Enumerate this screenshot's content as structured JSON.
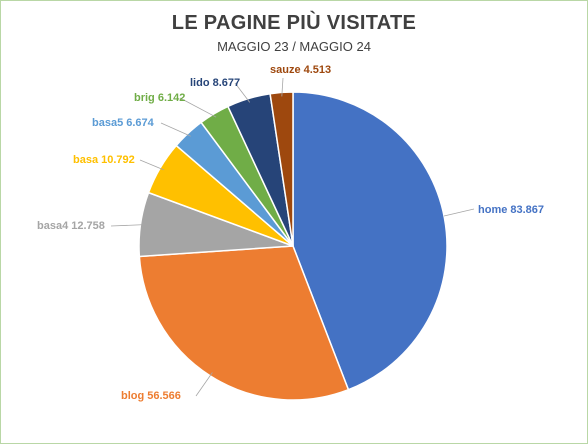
{
  "chart_data": {
    "type": "pie",
    "title": "LE PAGINE PIÙ VISITATE",
    "subtitle": "MAGGIO 23 / MAGGIO 24",
    "categories": [
      "home",
      "blog",
      "basa4",
      "basa",
      "basa5",
      "brig",
      "lido",
      "sauze"
    ],
    "values": [
      83867,
      56566,
      12758,
      10792,
      6674,
      6142,
      8677,
      4513
    ],
    "data_labels": [
      "home 83.867",
      "blog 56.566",
      "basa4 12.758",
      "basa 10.792",
      "basa5 6.674",
      "brig 6.142",
      "lido 8.677",
      "sauze 4.513"
    ],
    "colors": [
      "#4472c4",
      "#ed7d31",
      "#a5a5a5",
      "#ffc000",
      "#5b9bd5",
      "#70ad47",
      "#264478",
      "#9e480e"
    ],
    "label_colors": [
      "#4472c4",
      "#ed7d31",
      "#a5a5a5",
      "#ffc000",
      "#5b9bd5",
      "#70ad47",
      "#264478",
      "#9e480e"
    ],
    "legend": "none"
  }
}
